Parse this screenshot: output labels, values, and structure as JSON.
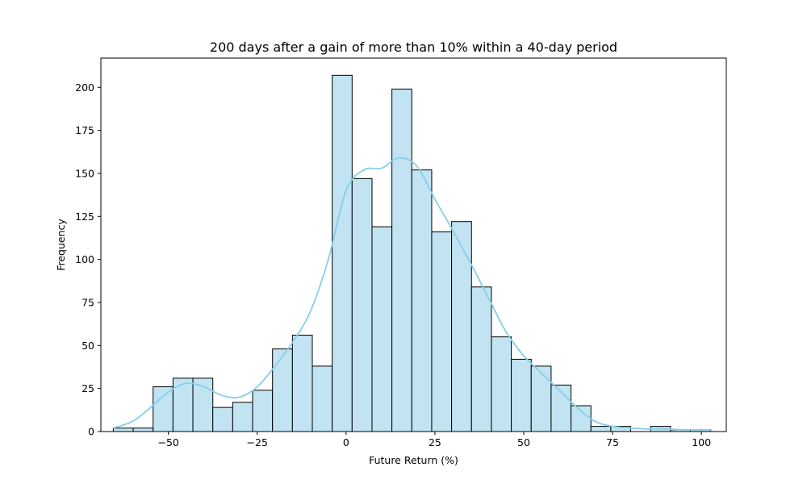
{
  "chart_data": {
    "type": "bar",
    "title": "200 days after a gain of more than 10% within a 40-day period",
    "xlabel": "Future Return (%)",
    "ylabel": "Frequency",
    "xlim": [
      -69,
      107
    ],
    "ylim": [
      0,
      217
    ],
    "xticks": [
      -50,
      -25,
      0,
      25,
      50,
      75,
      100
    ],
    "xtick_labels": [
      "−50",
      "−25",
      "0",
      "25",
      "50",
      "75",
      "100"
    ],
    "yticks": [
      0,
      25,
      50,
      75,
      100,
      125,
      150,
      175,
      200
    ],
    "ytick_labels": [
      "0",
      "25",
      "50",
      "75",
      "100",
      "125",
      "150",
      "175",
      "200"
    ],
    "grid": false,
    "bins": {
      "start": -65.5,
      "width": 5.6,
      "counts": [
        2,
        2,
        26,
        31,
        31,
        14,
        17,
        24,
        48,
        56,
        38,
        207,
        147,
        119,
        199,
        152,
        116,
        122,
        84,
        55,
        42,
        38,
        27,
        15,
        3,
        3,
        0,
        3,
        1,
        1
      ]
    },
    "kde": {
      "x": [
        -65.5,
        -60,
        -55,
        -50,
        -45,
        -40,
        -35,
        -30,
        -25,
        -20,
        -15,
        -10,
        -5,
        0,
        5,
        10,
        15,
        20,
        25,
        30,
        35,
        40,
        45,
        50,
        55,
        60,
        65,
        70,
        75,
        80,
        85,
        90,
        95,
        100,
        103
      ],
      "y": [
        2,
        6,
        14,
        23,
        28,
        26,
        21,
        20,
        26,
        38,
        52,
        70,
        100,
        140,
        152,
        153,
        159,
        154,
        135,
        117,
        98,
        78,
        58,
        44,
        34,
        24,
        14,
        6,
        3,
        2,
        1.5,
        1.5,
        1,
        1,
        1
      ]
    },
    "colors": {
      "bar_fill": "#c2e4f2",
      "bar_edge": "#000000",
      "kde_line": "#87ceeb"
    }
  }
}
